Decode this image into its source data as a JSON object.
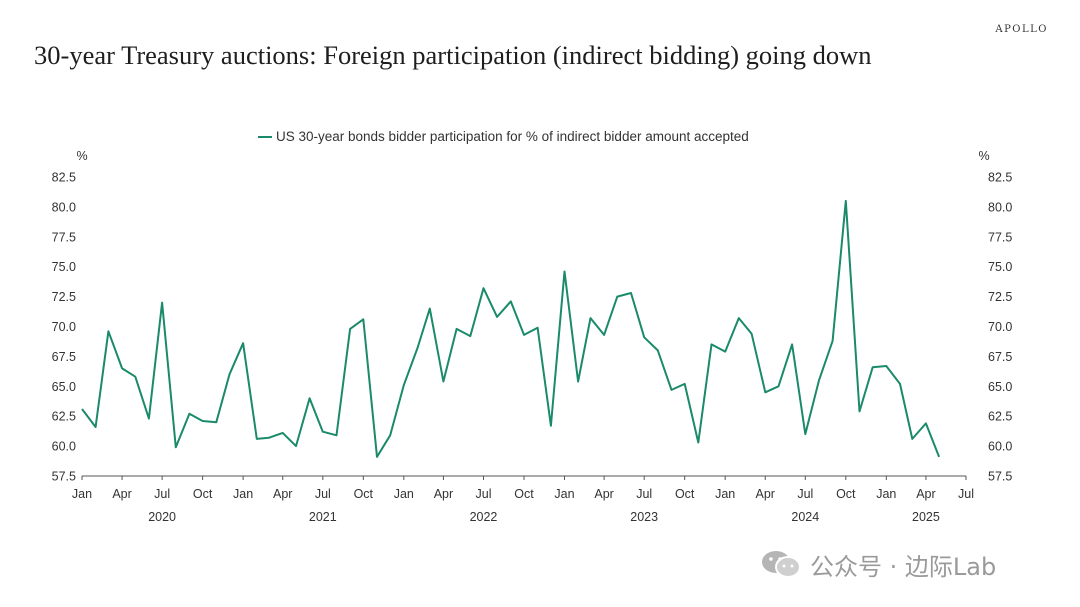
{
  "brand": "APOLLO",
  "title": "30-year Treasury auctions: Foreign participation (indirect bidding) going down",
  "watermark": "公众号 · 边际Lab",
  "chart_data": {
    "type": "line",
    "legend": "US 30-year bonds bidder participation for % of indirect bidder amount accepted",
    "legend_position": "top-center",
    "y_unit": "%",
    "ylim": [
      57.5,
      82.5
    ],
    "yticks": [
      "57.5",
      "60.0",
      "62.5",
      "65.0",
      "67.5",
      "70.0",
      "72.5",
      "75.0",
      "77.5",
      "80.0",
      "82.5"
    ],
    "x_ticks": [
      {
        "label": "Jan",
        "date": "2020-01"
      },
      {
        "label": "Apr",
        "date": "2020-04"
      },
      {
        "label": "Jul",
        "date": "2020-07"
      },
      {
        "label": "Oct",
        "date": "2020-10"
      },
      {
        "label": "Jan",
        "date": "2021-01"
      },
      {
        "label": "Apr",
        "date": "2021-04"
      },
      {
        "label": "Jul",
        "date": "2021-07"
      },
      {
        "label": "Oct",
        "date": "2021-10"
      },
      {
        "label": "Jan",
        "date": "2022-01"
      },
      {
        "label": "Apr",
        "date": "2022-04"
      },
      {
        "label": "Jul",
        "date": "2022-07"
      },
      {
        "label": "Oct",
        "date": "2022-10"
      },
      {
        "label": "Jan",
        "date": "2023-01"
      },
      {
        "label": "Apr",
        "date": "2023-04"
      },
      {
        "label": "Jul",
        "date": "2023-07"
      },
      {
        "label": "Oct",
        "date": "2023-10"
      },
      {
        "label": "Jan",
        "date": "2024-01"
      },
      {
        "label": "Apr",
        "date": "2024-04"
      },
      {
        "label": "Jul",
        "date": "2024-07"
      },
      {
        "label": "Oct",
        "date": "2024-10"
      },
      {
        "label": "Jan",
        "date": "2025-01"
      },
      {
        "label": "Apr",
        "date": "2025-04"
      },
      {
        "label": "Jul",
        "date": "2025-07"
      }
    ],
    "years": [
      {
        "label": "2020",
        "date": "2020-07"
      },
      {
        "label": "2021",
        "date": "2021-07"
      },
      {
        "label": "2022",
        "date": "2022-07"
      },
      {
        "label": "2023",
        "date": "2023-07"
      },
      {
        "label": "2024",
        "date": "2024-07"
      },
      {
        "label": "2025",
        "date": "2025-04"
      }
    ],
    "color": "#1a8a6a",
    "grid": false,
    "series": [
      {
        "x": [
          "2020-01",
          "2020-02",
          "2020-03",
          "2020-04",
          "2020-05",
          "2020-06",
          "2020-07",
          "2020-08",
          "2020-09",
          "2020-10",
          "2020-11",
          "2020-12",
          "2021-01",
          "2021-02",
          "2021-03",
          "2021-04",
          "2021-05",
          "2021-06",
          "2021-07",
          "2021-08",
          "2021-09",
          "2021-10",
          "2021-11",
          "2021-12",
          "2022-01",
          "2022-02",
          "2022-03",
          "2022-04",
          "2022-05",
          "2022-06",
          "2022-07",
          "2022-08",
          "2022-09",
          "2022-10",
          "2022-11",
          "2022-12",
          "2023-01",
          "2023-02",
          "2023-03",
          "2023-04",
          "2023-05",
          "2023-06",
          "2023-07",
          "2023-08",
          "2023-09",
          "2023-10",
          "2023-11",
          "2023-12",
          "2024-01",
          "2024-02",
          "2024-03",
          "2024-04",
          "2024-05",
          "2024-06",
          "2024-07",
          "2024-08",
          "2024-09",
          "2024-10",
          "2024-11",
          "2024-12",
          "2025-01",
          "2025-02",
          "2025-03",
          "2025-04",
          "2025-05"
        ],
        "values": [
          63.1,
          61.6,
          69.6,
          66.5,
          65.8,
          62.3,
          72.0,
          59.9,
          62.7,
          62.1,
          62.0,
          66.0,
          68.6,
          60.6,
          60.7,
          61.1,
          60.0,
          64.0,
          61.2,
          60.9,
          69.8,
          70.6,
          59.1,
          60.9,
          65.1,
          68.2,
          71.5,
          65.4,
          69.8,
          69.2,
          73.2,
          70.8,
          72.1,
          69.3,
          69.9,
          61.7,
          74.6,
          65.4,
          70.7,
          69.3,
          72.5,
          72.8,
          69.1,
          68.0,
          64.7,
          65.2,
          60.3,
          68.5,
          67.9,
          70.7,
          69.4,
          64.5,
          65.0,
          68.5,
          61.0,
          65.5,
          68.8,
          80.5,
          62.9,
          66.6,
          66.7,
          65.2,
          60.6,
          61.9,
          59.1
        ]
      }
    ]
  }
}
